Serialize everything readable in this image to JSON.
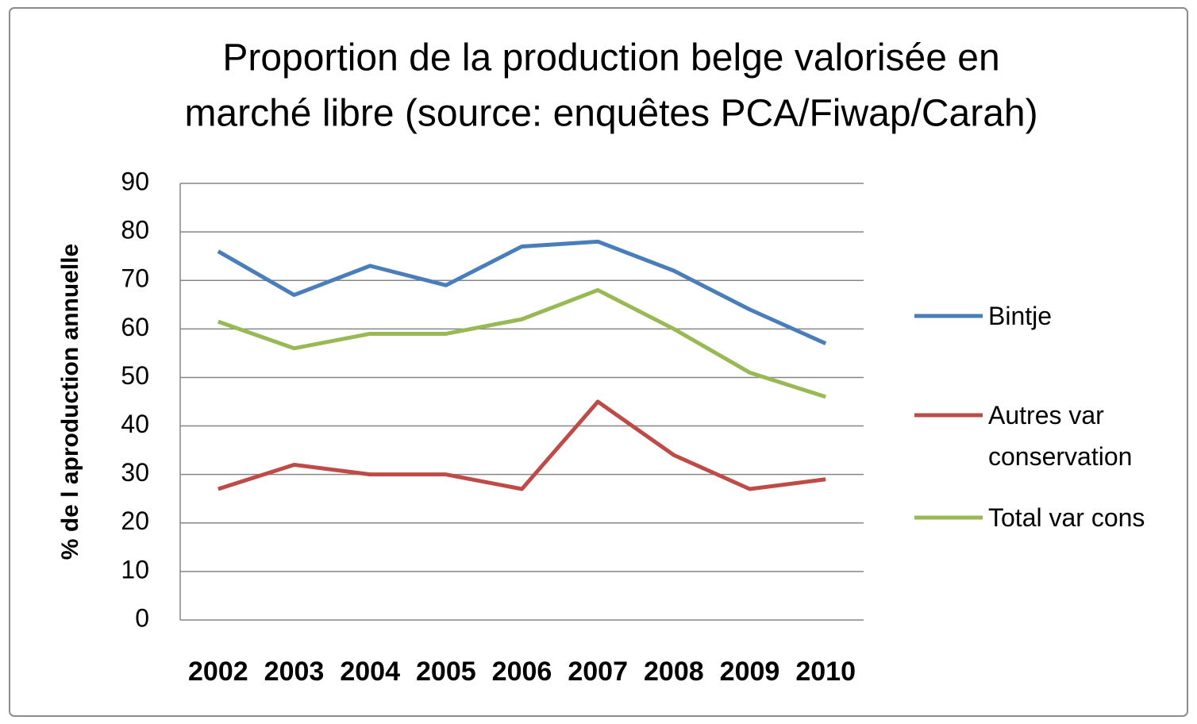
{
  "chart_data": {
    "type": "line",
    "title": [
      "Proportion de la production belge valorisée en",
      "marché libre (source: enquêtes PCA/Fiwap/Carah)"
    ],
    "y_label": "% de l aproduction annuelle",
    "categories": [
      "2002",
      "2003",
      "2004",
      "2005",
      "2006",
      "2007",
      "2008",
      "2009",
      "2010"
    ],
    "series": [
      {
        "name": "Bintje",
        "color": "#4a7ebb",
        "values": [
          76,
          67,
          73,
          69,
          77,
          78,
          72,
          64,
          57
        ]
      },
      {
        "name": "Autres var conservation",
        "color": "#be4b48",
        "values": [
          27,
          32,
          30,
          30,
          27,
          45,
          34,
          27,
          29
        ]
      },
      {
        "name": "Total var cons",
        "color": "#98b954",
        "values": [
          61.5,
          56,
          59,
          59,
          62,
          68,
          60,
          51,
          46
        ]
      }
    ],
    "ylim": [
      0,
      90
    ],
    "yticks": [
      0,
      10,
      20,
      30,
      40,
      50,
      60,
      70,
      80,
      90
    ],
    "grid": true,
    "legend": "right"
  }
}
